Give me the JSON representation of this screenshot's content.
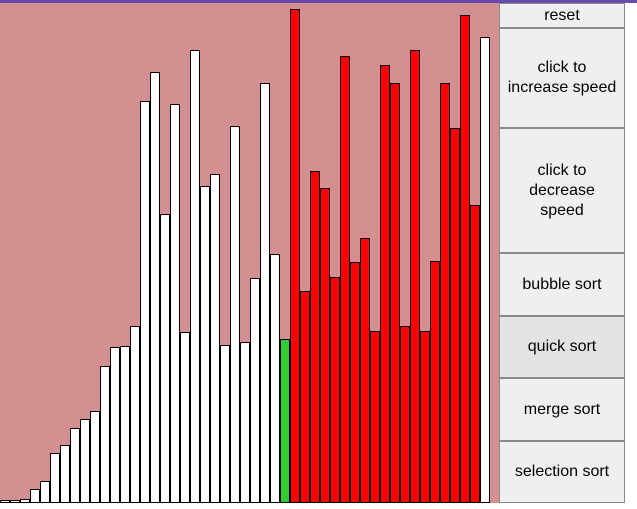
{
  "colors": {
    "background": "#d48f90",
    "unsorted_bar": "#ffffff",
    "compare_bar": "#ff0000",
    "pivot_bar": "#33cc33",
    "accent_topbar": "#6a4aa8"
  },
  "controls": {
    "reset_label": "reset",
    "increase_label": "click to increase speed",
    "decrease_label": "click to decrease speed",
    "bubble_label": "bubble sort",
    "quick_label": "quick sort",
    "merge_label": "merge sort",
    "selection_label": "selection sort",
    "active_algorithm": "quick sort"
  },
  "bars": [
    {
      "value": 3,
      "state": "default"
    },
    {
      "value": 3,
      "state": "default"
    },
    {
      "value": 4,
      "state": "default"
    },
    {
      "value": 14,
      "state": "default"
    },
    {
      "value": 22,
      "state": "default"
    },
    {
      "value": 50,
      "state": "default"
    },
    {
      "value": 58,
      "state": "default"
    },
    {
      "value": 75,
      "state": "default"
    },
    {
      "value": 84,
      "state": "default"
    },
    {
      "value": 92,
      "state": "default"
    },
    {
      "value": 137,
      "state": "default"
    },
    {
      "value": 156,
      "state": "default"
    },
    {
      "value": 157,
      "state": "default"
    },
    {
      "value": 177,
      "state": "default"
    },
    {
      "value": 402,
      "state": "default"
    },
    {
      "value": 431,
      "state": "default"
    },
    {
      "value": 289,
      "state": "default"
    },
    {
      "value": 399,
      "state": "default"
    },
    {
      "value": 171,
      "state": "default"
    },
    {
      "value": 453,
      "state": "default"
    },
    {
      "value": 317,
      "state": "default"
    },
    {
      "value": 329,
      "state": "default"
    },
    {
      "value": 158,
      "state": "default"
    },
    {
      "value": 377,
      "state": "default"
    },
    {
      "value": 161,
      "state": "default"
    },
    {
      "value": 225,
      "state": "default"
    },
    {
      "value": 420,
      "state": "default"
    },
    {
      "value": 249,
      "state": "default"
    },
    {
      "value": 164,
      "state": "pivot"
    },
    {
      "value": 494,
      "state": "compare"
    },
    {
      "value": 212,
      "state": "compare"
    },
    {
      "value": 332,
      "state": "compare"
    },
    {
      "value": 315,
      "state": "compare"
    },
    {
      "value": 226,
      "state": "compare"
    },
    {
      "value": 447,
      "state": "compare"
    },
    {
      "value": 241,
      "state": "compare"
    },
    {
      "value": 265,
      "state": "compare"
    },
    {
      "value": 172,
      "state": "compare"
    },
    {
      "value": 438,
      "state": "compare"
    },
    {
      "value": 420,
      "state": "compare"
    },
    {
      "value": 177,
      "state": "compare"
    },
    {
      "value": 453,
      "state": "compare"
    },
    {
      "value": 172,
      "state": "compare"
    },
    {
      "value": 242,
      "state": "compare"
    },
    {
      "value": 420,
      "state": "compare"
    },
    {
      "value": 375,
      "state": "compare"
    },
    {
      "value": 488,
      "state": "compare"
    },
    {
      "value": 298,
      "state": "compare"
    },
    {
      "value": 466,
      "state": "default"
    }
  ]
}
